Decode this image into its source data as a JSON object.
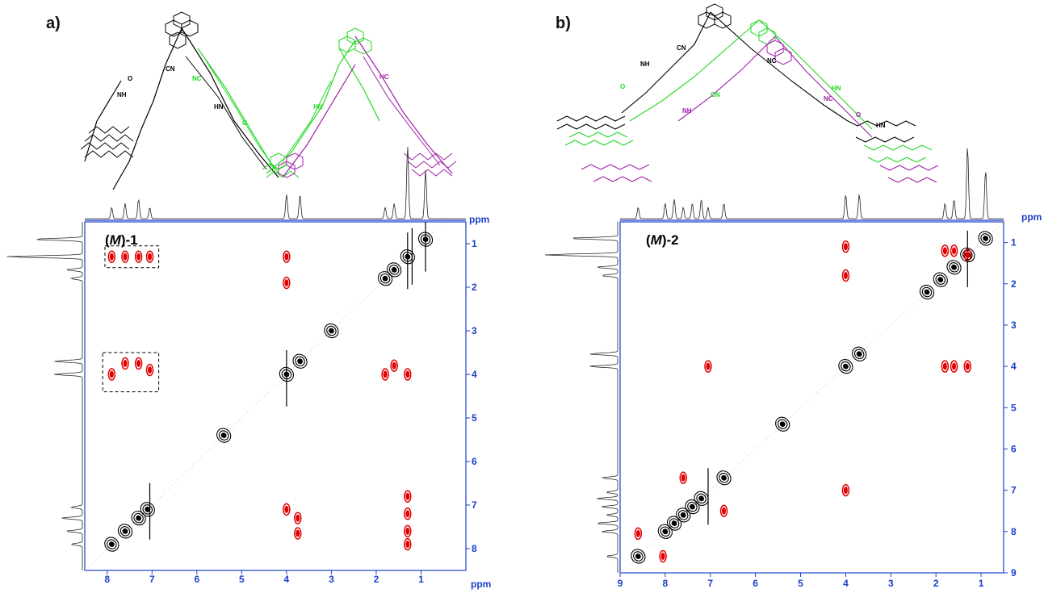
{
  "panels": [
    {
      "letter": "a)",
      "sample_italic": "M",
      "sample_suffix": "-1",
      "axis_unit": "ppm",
      "structure_colors": [
        "#000000",
        "#1fd81f",
        "#a020a8"
      ],
      "structure_text": [
        "CN",
        "NC",
        "NH",
        "HN",
        "O",
        "O",
        "NC",
        "HN"
      ]
    },
    {
      "letter": "b)",
      "sample_italic": "M",
      "sample_suffix": "-2",
      "axis_unit": "ppm",
      "structure_colors": [
        "#000000",
        "#1fd81f",
        "#a020a8"
      ],
      "structure_text": [
        "CN",
        "NC",
        "NH",
        "HN",
        "O",
        "O",
        "NC",
        "CN",
        "NH",
        "HN"
      ]
    }
  ],
  "chart_data": [
    {
      "type": "heatmap",
      "subtype": "2D NMR (ROESY-type) contour map",
      "title": "(M)-1",
      "xlabel": "ppm",
      "ylabel": "ppm",
      "xlim": [
        8.5,
        0
      ],
      "ylim": [
        0.5,
        8.5
      ],
      "x_ticks": [
        8,
        7,
        6,
        5,
        4,
        3,
        2,
        1
      ],
      "y_ticks": [
        1,
        2,
        3,
        4,
        5,
        6,
        7,
        8
      ],
      "axis_color": "#1a3fc9",
      "positive_color": "#000000",
      "negative_color": "#e00000",
      "diagonal_peaks": [
        [
          7.9,
          7.9
        ],
        [
          7.6,
          7.6
        ],
        [
          7.3,
          7.3
        ],
        [
          7.1,
          7.1
        ],
        [
          4.0,
          4.0
        ],
        [
          3.7,
          3.7
        ],
        [
          3.0,
          3.0
        ],
        [
          1.8,
          1.8
        ],
        [
          1.6,
          1.6
        ],
        [
          1.3,
          1.3
        ],
        [
          0.9,
          0.9
        ],
        [
          5.4,
          5.4
        ]
      ],
      "cross_peaks": [
        {
          "x": 7.9,
          "y": 1.3,
          "sign": "negative"
        },
        {
          "x": 7.6,
          "y": 1.3,
          "sign": "negative"
        },
        {
          "x": 7.3,
          "y": 1.3,
          "sign": "negative"
        },
        {
          "x": 7.05,
          "y": 1.3,
          "sign": "negative"
        },
        {
          "x": 7.9,
          "y": 4.0,
          "sign": "negative"
        },
        {
          "x": 7.6,
          "y": 3.75,
          "sign": "negative"
        },
        {
          "x": 7.3,
          "y": 3.75,
          "sign": "negative"
        },
        {
          "x": 7.05,
          "y": 3.9,
          "sign": "negative"
        },
        {
          "x": 4.0,
          "y": 1.3,
          "sign": "negative"
        },
        {
          "x": 4.0,
          "y": 1.9,
          "sign": "negative"
        },
        {
          "x": 1.8,
          "y": 4.0,
          "sign": "negative"
        },
        {
          "x": 1.6,
          "y": 3.8,
          "sign": "negative"
        },
        {
          "x": 1.3,
          "y": 4.0,
          "sign": "negative"
        },
        {
          "x": 4.0,
          "y": 7.1,
          "sign": "negative"
        },
        {
          "x": 3.75,
          "y": 7.3,
          "sign": "negative"
        },
        {
          "x": 3.75,
          "y": 7.65,
          "sign": "negative"
        },
        {
          "x": 1.3,
          "y": 6.8,
          "sign": "negative"
        },
        {
          "x": 1.3,
          "y": 7.2,
          "sign": "negative"
        },
        {
          "x": 1.3,
          "y": 7.6,
          "sign": "negative"
        },
        {
          "x": 1.3,
          "y": 7.9,
          "sign": "negative"
        }
      ],
      "highlight_boxes": [
        {
          "x_range": [
            8.05,
            6.85
          ],
          "y_range": [
            1.05,
            1.55
          ]
        },
        {
          "x_range": [
            8.1,
            6.85
          ],
          "y_range": [
            3.5,
            4.4
          ]
        }
      ],
      "projection_peaks": [
        7.9,
        7.6,
        7.3,
        7.05,
        4.0,
        3.7,
        1.8,
        1.6,
        1.3,
        0.9
      ]
    },
    {
      "type": "heatmap",
      "subtype": "2D NMR (ROESY-type) contour map",
      "title": "(M)-2",
      "xlabel": "ppm",
      "ylabel": "ppm",
      "xlim": [
        9,
        0.5
      ],
      "ylim": [
        0.5,
        9
      ],
      "x_ticks": [
        9,
        8,
        7,
        6,
        5,
        4,
        3,
        2,
        1
      ],
      "y_ticks": [
        1,
        2,
        3,
        4,
        5,
        6,
        7,
        8,
        9
      ],
      "axis_color": "#1a3fc9",
      "positive_color": "#000000",
      "negative_color": "#e00000",
      "diagonal_peaks": [
        [
          8.6,
          8.6
        ],
        [
          8.0,
          8.0
        ],
        [
          7.8,
          7.8
        ],
        [
          7.6,
          7.6
        ],
        [
          7.4,
          7.4
        ],
        [
          7.2,
          7.2
        ],
        [
          6.7,
          6.7
        ],
        [
          4.0,
          4.0
        ],
        [
          5.4,
          5.4
        ],
        [
          3.7,
          3.7
        ],
        [
          2.2,
          2.2
        ],
        [
          1.9,
          1.9
        ],
        [
          1.6,
          1.6
        ],
        [
          1.3,
          1.3
        ],
        [
          0.9,
          0.9
        ]
      ],
      "cross_peaks": [
        {
          "x": 4.0,
          "y": 1.1,
          "sign": "negative"
        },
        {
          "x": 4.0,
          "y": 1.8,
          "sign": "negative"
        },
        {
          "x": 7.05,
          "y": 4.0,
          "sign": "negative"
        },
        {
          "x": 1.8,
          "y": 4.0,
          "sign": "negative"
        },
        {
          "x": 1.6,
          "y": 4.0,
          "sign": "negative"
        },
        {
          "x": 1.3,
          "y": 4.0,
          "sign": "negative"
        },
        {
          "x": 7.6,
          "y": 6.7,
          "sign": "negative"
        },
        {
          "x": 6.7,
          "y": 7.5,
          "sign": "negative"
        },
        {
          "x": 4.0,
          "y": 7.0,
          "sign": "negative"
        },
        {
          "x": 8.6,
          "y": 8.05,
          "sign": "negative"
        },
        {
          "x": 8.05,
          "y": 8.6,
          "sign": "negative"
        },
        {
          "x": 1.3,
          "y": 1.3,
          "sign": "negative"
        },
        {
          "x": 1.6,
          "y": 1.2,
          "sign": "negative"
        },
        {
          "x": 1.8,
          "y": 1.2,
          "sign": "negative"
        }
      ],
      "projection_peaks": [
        8.6,
        8.0,
        7.8,
        7.6,
        7.4,
        7.2,
        7.05,
        6.7,
        4.0,
        3.7,
        1.8,
        1.6,
        1.3,
        0.9
      ]
    }
  ]
}
